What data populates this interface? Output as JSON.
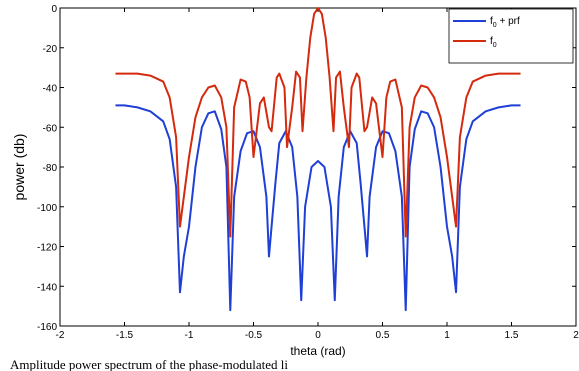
{
  "chart_data": {
    "type": "line",
    "xlabel": "theta (rad)",
    "ylabel": "power (db)",
    "xlim": [
      -2,
      2
    ],
    "ylim": [
      -160,
      0
    ],
    "xticks": [
      -2,
      -1.5,
      -1,
      -0.5,
      0,
      0.5,
      1,
      1.5,
      2
    ],
    "yticks": [
      0,
      -20,
      -40,
      -60,
      -80,
      -100,
      -120,
      -140,
      -160
    ],
    "xtick_labels": [
      "-2",
      "-1.5",
      "-1",
      "-0.5",
      "0",
      "0.5",
      "1",
      "1.5",
      "2"
    ],
    "ytick_labels": [
      "0",
      "-20",
      "-40",
      "-60",
      "-80",
      "-100",
      "-120",
      "-140",
      "-160"
    ],
    "grid": false,
    "legend_position": "top-right",
    "series": [
      {
        "legend_base": "f",
        "legend_sub": "0",
        "legend_suffix": " + prf",
        "color": "#1f3fd6",
        "x": [
          0,
          0.05,
          0.1,
          0.13,
          0.16,
          0.2,
          0.25,
          0.3,
          0.33,
          0.36,
          0.38,
          0.4,
          0.45,
          0.5,
          0.55,
          0.6,
          0.65,
          0.68,
          0.71,
          0.75,
          0.8,
          0.85,
          0.9,
          0.95,
          1.0,
          1.04,
          1.07,
          1.1,
          1.15,
          1.2,
          1.3,
          1.4,
          1.5,
          1.57
        ],
        "y": [
          -77,
          -80,
          -100,
          -147,
          -95,
          -70,
          -62,
          -68,
          -88,
          -110,
          -125,
          -95,
          -70,
          -62,
          -63,
          -72,
          -95,
          -152,
          -80,
          -61,
          -52,
          -53,
          -60,
          -80,
          -110,
          -125,
          -143,
          -90,
          -66,
          -57,
          -52,
          -50,
          -49,
          -49
        ]
      },
      {
        "legend_base": "f",
        "legend_sub": "0",
        "legend_suffix": "",
        "color": "#d42a0e",
        "x": [
          0,
          0.03,
          0.06,
          0.09,
          0.12,
          0.14,
          0.17,
          0.2,
          0.24,
          0.26,
          0.3,
          0.32,
          0.36,
          0.38,
          0.42,
          0.45,
          0.5,
          0.53,
          0.56,
          0.6,
          0.65,
          0.68,
          0.71,
          0.75,
          0.8,
          0.85,
          0.9,
          0.95,
          1.0,
          1.04,
          1.07,
          1.1,
          1.15,
          1.2,
          1.3,
          1.4,
          1.5,
          1.57
        ],
        "y": [
          0,
          -3,
          -15,
          -35,
          -62,
          -35,
          -32,
          -50,
          -70,
          -40,
          -33,
          -35,
          -62,
          -60,
          -45,
          -48,
          -75,
          -45,
          -37,
          -36,
          -50,
          -115,
          -60,
          -45,
          -39,
          -40,
          -45,
          -55,
          -75,
          -95,
          -110,
          -65,
          -45,
          -37,
          -34,
          -33,
          -33,
          -33
        ]
      }
    ]
  },
  "caption_text": "Amplitude power spectrum of the phase-modulated li"
}
